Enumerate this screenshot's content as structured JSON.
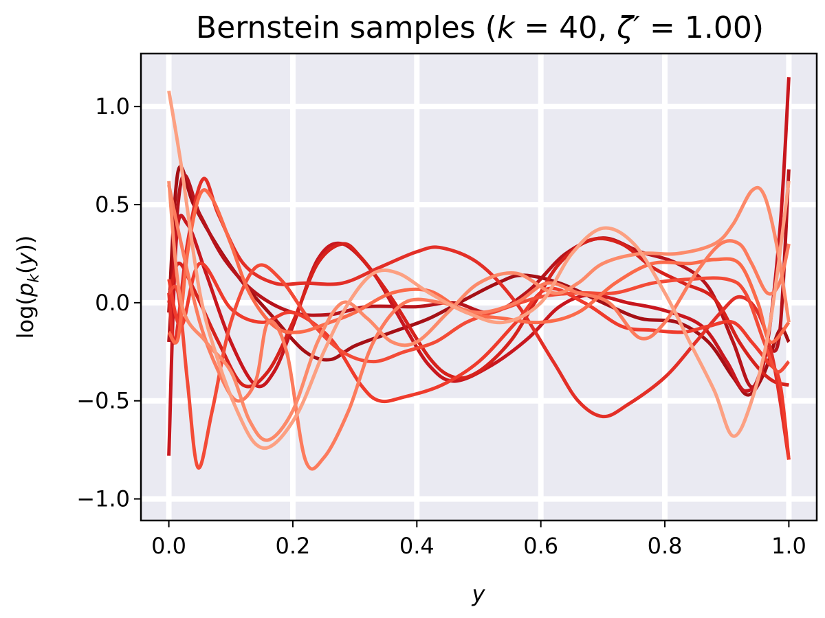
{
  "chart_data": {
    "type": "line",
    "title": {
      "prefix": "Bernstein samples (",
      "k_sym": "k",
      "eq1": " = 40, ",
      "zeta_sym": "ζ′",
      "eq2": " = 1.00)"
    },
    "xlabel": "y",
    "ylabel": {
      "prefix": "log(",
      "p": "p",
      "sub": "k",
      "mid": "(",
      "y": "y",
      "suffix": "))"
    },
    "xlim": [
      -0.045,
      1.045
    ],
    "ylim": [
      -1.11,
      1.27
    ],
    "grid": true,
    "background": "#eaeaf2",
    "x_ticks": [
      0.0,
      0.2,
      0.4,
      0.6,
      0.8,
      1.0
    ],
    "x_tick_labels": [
      "0.0",
      "0.2",
      "0.4",
      "0.6",
      "0.8",
      "1.0"
    ],
    "y_ticks": [
      -1.0,
      -0.5,
      0.0,
      0.5,
      1.0
    ],
    "y_tick_labels": [
      "−1.0",
      "−0.5",
      "0.0",
      "0.5",
      "1.0"
    ],
    "series": [
      {
        "color": "#a50f15",
        "points": [
          [
            0.0,
            -0.05
          ],
          [
            0.015,
            0.67
          ],
          [
            0.04,
            0.5
          ],
          [
            0.08,
            0.28
          ],
          [
            0.12,
            0.1
          ],
          [
            0.17,
            -0.08
          ],
          [
            0.22,
            -0.25
          ],
          [
            0.26,
            -0.29
          ],
          [
            0.3,
            -0.22
          ],
          [
            0.36,
            -0.15
          ],
          [
            0.42,
            -0.08
          ],
          [
            0.48,
            0.02
          ],
          [
            0.53,
            0.1
          ],
          [
            0.57,
            0.14
          ],
          [
            0.63,
            0.1
          ],
          [
            0.7,
            0.0
          ],
          [
            0.76,
            -0.08
          ],
          [
            0.82,
            -0.1
          ],
          [
            0.87,
            -0.2
          ],
          [
            0.91,
            -0.38
          ],
          [
            0.935,
            -0.47
          ],
          [
            0.96,
            -0.36
          ],
          [
            0.985,
            -0.14
          ],
          [
            1.0,
            -0.2
          ]
        ]
      },
      {
        "color": "#b7141b",
        "points": [
          [
            0.0,
            -0.2
          ],
          [
            0.02,
            0.62
          ],
          [
            0.05,
            0.45
          ],
          [
            0.09,
            0.22
          ],
          [
            0.14,
            0.05
          ],
          [
            0.2,
            -0.05
          ],
          [
            0.26,
            -0.06
          ],
          [
            0.32,
            -0.02
          ],
          [
            0.4,
            -0.02
          ],
          [
            0.46,
            0.0
          ],
          [
            0.52,
            -0.05
          ],
          [
            0.58,
            0.06
          ],
          [
            0.64,
            0.25
          ],
          [
            0.7,
            0.33
          ],
          [
            0.76,
            0.26
          ],
          [
            0.82,
            0.2
          ],
          [
            0.87,
            0.08
          ],
          [
            0.91,
            -0.2
          ],
          [
            0.94,
            -0.43
          ],
          [
            0.965,
            -0.25
          ],
          [
            0.985,
            -0.16
          ],
          [
            1.0,
            0.68
          ]
        ]
      },
      {
        "color": "#c8171e",
        "points": [
          [
            0.0,
            -0.78
          ],
          [
            0.012,
            0.32
          ],
          [
            0.03,
            0.4
          ],
          [
            0.06,
            0.15
          ],
          [
            0.1,
            -0.2
          ],
          [
            0.14,
            -0.42
          ],
          [
            0.17,
            -0.35
          ],
          [
            0.2,
            -0.12
          ],
          [
            0.24,
            0.22
          ],
          [
            0.28,
            0.3
          ],
          [
            0.33,
            0.15
          ],
          [
            0.38,
            -0.12
          ],
          [
            0.42,
            -0.32
          ],
          [
            0.46,
            -0.4
          ],
          [
            0.52,
            -0.32
          ],
          [
            0.58,
            -0.18
          ],
          [
            0.63,
            -0.02
          ],
          [
            0.68,
            0.04
          ],
          [
            0.74,
            0.0
          ],
          [
            0.8,
            -0.04
          ],
          [
            0.86,
            -0.12
          ],
          [
            0.9,
            -0.3
          ],
          [
            0.93,
            -0.45
          ],
          [
            0.96,
            -0.3
          ],
          [
            0.985,
            0.35
          ],
          [
            1.0,
            1.15
          ]
        ]
      },
      {
        "color": "#d6221c",
        "points": [
          [
            0.0,
            0.0
          ],
          [
            0.015,
            0.2
          ],
          [
            0.04,
            0.07
          ],
          [
            0.08,
            -0.2
          ],
          [
            0.12,
            -0.42
          ],
          [
            0.16,
            -0.35
          ],
          [
            0.2,
            -0.1
          ],
          [
            0.24,
            0.2
          ],
          [
            0.28,
            0.3
          ],
          [
            0.31,
            0.23
          ],
          [
            0.36,
            0.02
          ],
          [
            0.42,
            -0.28
          ],
          [
            0.46,
            -0.38
          ],
          [
            0.5,
            -0.35
          ],
          [
            0.55,
            -0.2
          ],
          [
            0.59,
            0.0
          ],
          [
            0.63,
            0.2
          ],
          [
            0.68,
            0.32
          ],
          [
            0.73,
            0.3
          ],
          [
            0.78,
            0.18
          ],
          [
            0.83,
            0.1
          ],
          [
            0.88,
            0.02
          ],
          [
            0.92,
            -0.2
          ],
          [
            0.95,
            -0.33
          ],
          [
            0.975,
            -0.4
          ],
          [
            1.0,
            -0.42
          ]
        ]
      },
      {
        "color": "#e32f27",
        "points": [
          [
            0.0,
            0.05
          ],
          [
            0.01,
            -0.2
          ],
          [
            0.03,
            0.3
          ],
          [
            0.055,
            0.63
          ],
          [
            0.08,
            0.45
          ],
          [
            0.12,
            0.2
          ],
          [
            0.17,
            0.1
          ],
          [
            0.22,
            0.1
          ],
          [
            0.28,
            0.1
          ],
          [
            0.34,
            0.18
          ],
          [
            0.4,
            0.26
          ],
          [
            0.44,
            0.28
          ],
          [
            0.5,
            0.2
          ],
          [
            0.56,
            0.0
          ],
          [
            0.62,
            -0.3
          ],
          [
            0.66,
            -0.5
          ],
          [
            0.7,
            -0.58
          ],
          [
            0.74,
            -0.52
          ],
          [
            0.8,
            -0.38
          ],
          [
            0.85,
            -0.2
          ],
          [
            0.89,
            -0.05
          ],
          [
            0.92,
            0.03
          ],
          [
            0.95,
            -0.05
          ],
          [
            0.975,
            -0.3
          ],
          [
            1.0,
            -0.8
          ]
        ]
      },
      {
        "color": "#ef3b2c",
        "points": [
          [
            0.0,
            0.12
          ],
          [
            0.02,
            -0.12
          ],
          [
            0.05,
            0.2
          ],
          [
            0.1,
            -0.03
          ],
          [
            0.15,
            -0.1
          ],
          [
            0.2,
            -0.05
          ],
          [
            0.26,
            -0.18
          ],
          [
            0.31,
            -0.42
          ],
          [
            0.34,
            -0.5
          ],
          [
            0.38,
            -0.48
          ],
          [
            0.44,
            -0.42
          ],
          [
            0.5,
            -0.3
          ],
          [
            0.56,
            -0.1
          ],
          [
            0.61,
            0.07
          ],
          [
            0.67,
            0.0
          ],
          [
            0.73,
            -0.12
          ],
          [
            0.78,
            -0.14
          ],
          [
            0.83,
            -0.15
          ],
          [
            0.87,
            -0.12
          ],
          [
            0.91,
            -0.1
          ],
          [
            0.94,
            -0.2
          ],
          [
            0.965,
            -0.3
          ],
          [
            0.985,
            -0.4
          ],
          [
            1.0,
            -0.8
          ]
        ]
      },
      {
        "color": "#f34b37",
        "points": [
          [
            0.0,
            0.05
          ],
          [
            0.015,
            0.05
          ],
          [
            0.03,
            -0.4
          ],
          [
            0.047,
            -0.84
          ],
          [
            0.07,
            -0.55
          ],
          [
            0.1,
            -0.1
          ],
          [
            0.14,
            0.18
          ],
          [
            0.18,
            0.12
          ],
          [
            0.23,
            -0.1
          ],
          [
            0.28,
            -0.25
          ],
          [
            0.33,
            -0.3
          ],
          [
            0.38,
            -0.25
          ],
          [
            0.43,
            -0.2
          ],
          [
            0.48,
            -0.1
          ],
          [
            0.54,
            -0.03
          ],
          [
            0.6,
            0.03
          ],
          [
            0.66,
            0.05
          ],
          [
            0.72,
            0.05
          ],
          [
            0.78,
            0.1
          ],
          [
            0.84,
            0.12
          ],
          [
            0.9,
            0.12
          ],
          [
            0.93,
            0.05
          ],
          [
            0.96,
            -0.2
          ],
          [
            0.98,
            -0.35
          ],
          [
            1.0,
            -0.3
          ]
        ]
      },
      {
        "color": "#fb6a4a",
        "points": [
          [
            0.0,
            -0.15
          ],
          [
            0.015,
            -0.18
          ],
          [
            0.03,
            0.25
          ],
          [
            0.05,
            0.55
          ],
          [
            0.07,
            0.53
          ],
          [
            0.1,
            0.3
          ],
          [
            0.13,
            0.05
          ],
          [
            0.17,
            -0.12
          ],
          [
            0.21,
            -0.15
          ],
          [
            0.26,
            -0.1
          ],
          [
            0.3,
            -0.05
          ],
          [
            0.36,
            0.05
          ],
          [
            0.42,
            0.06
          ],
          [
            0.48,
            -0.05
          ],
          [
            0.54,
            -0.08
          ],
          [
            0.6,
            -0.1
          ],
          [
            0.66,
            -0.05
          ],
          [
            0.72,
            0.1
          ],
          [
            0.78,
            0.2
          ],
          [
            0.84,
            0.2
          ],
          [
            0.88,
            0.22
          ],
          [
            0.92,
            0.2
          ],
          [
            0.95,
            0.0
          ],
          [
            0.97,
            -0.2
          ],
          [
            1.0,
            -0.1
          ]
        ]
      },
      {
        "color": "#fc7b5d",
        "points": [
          [
            0.0,
            0.6
          ],
          [
            0.02,
            0.3
          ],
          [
            0.05,
            -0.1
          ],
          [
            0.08,
            -0.35
          ],
          [
            0.11,
            -0.5
          ],
          [
            0.14,
            -0.4
          ],
          [
            0.16,
            -0.1
          ],
          [
            0.19,
            -0.25
          ],
          [
            0.22,
            -0.8
          ],
          [
            0.25,
            -0.79
          ],
          [
            0.29,
            -0.55
          ],
          [
            0.33,
            -0.2
          ],
          [
            0.38,
            0.0
          ],
          [
            0.44,
            0.0
          ],
          [
            0.5,
            -0.05
          ],
          [
            0.56,
            0.0
          ],
          [
            0.61,
            0.1
          ],
          [
            0.66,
            0.05
          ],
          [
            0.71,
            0.0
          ],
          [
            0.76,
            -0.18
          ],
          [
            0.8,
            -0.1
          ],
          [
            0.85,
            0.15
          ],
          [
            0.89,
            0.3
          ],
          [
            0.92,
            0.3
          ],
          [
            0.94,
            0.2
          ],
          [
            0.965,
            0.05
          ],
          [
            0.985,
            0.1
          ],
          [
            1.0,
            0.3
          ]
        ]
      },
      {
        "color": "#fc8a6a",
        "points": [
          [
            0.0,
            0.62
          ],
          [
            0.02,
            0.0
          ],
          [
            0.06,
            -0.2
          ],
          [
            0.1,
            -0.35
          ],
          [
            0.13,
            -0.6
          ],
          [
            0.16,
            -0.7
          ],
          [
            0.2,
            -0.55
          ],
          [
            0.24,
            -0.2
          ],
          [
            0.28,
            0.0
          ],
          [
            0.32,
            -0.08
          ],
          [
            0.36,
            -0.2
          ],
          [
            0.4,
            -0.2
          ],
          [
            0.45,
            -0.05
          ],
          [
            0.5,
            0.1
          ],
          [
            0.56,
            0.15
          ],
          [
            0.62,
            0.05
          ],
          [
            0.66,
            0.1
          ],
          [
            0.7,
            0.2
          ],
          [
            0.76,
            0.25
          ],
          [
            0.82,
            0.25
          ],
          [
            0.88,
            0.3
          ],
          [
            0.91,
            0.4
          ],
          [
            0.94,
            0.57
          ],
          [
            0.96,
            0.55
          ],
          [
            0.98,
            0.3
          ],
          [
            1.0,
            -0.1
          ]
        ]
      },
      {
        "color": "#fca082",
        "points": [
          [
            0.0,
            1.08
          ],
          [
            0.02,
            0.7
          ],
          [
            0.05,
            0.05
          ],
          [
            0.08,
            -0.3
          ],
          [
            0.11,
            -0.55
          ],
          [
            0.14,
            -0.72
          ],
          [
            0.17,
            -0.72
          ],
          [
            0.21,
            -0.55
          ],
          [
            0.25,
            -0.25
          ],
          [
            0.29,
            0.0
          ],
          [
            0.33,
            0.15
          ],
          [
            0.37,
            0.15
          ],
          [
            0.42,
            0.05
          ],
          [
            0.48,
            -0.05
          ],
          [
            0.54,
            -0.1
          ],
          [
            0.6,
            0.0
          ],
          [
            0.65,
            0.25
          ],
          [
            0.7,
            0.38
          ],
          [
            0.75,
            0.3
          ],
          [
            0.8,
            0.05
          ],
          [
            0.84,
            -0.2
          ],
          [
            0.88,
            -0.45
          ],
          [
            0.91,
            -0.68
          ],
          [
            0.94,
            -0.5
          ],
          [
            0.97,
            -0.1
          ],
          [
            1.0,
            0.62
          ]
        ]
      }
    ]
  }
}
